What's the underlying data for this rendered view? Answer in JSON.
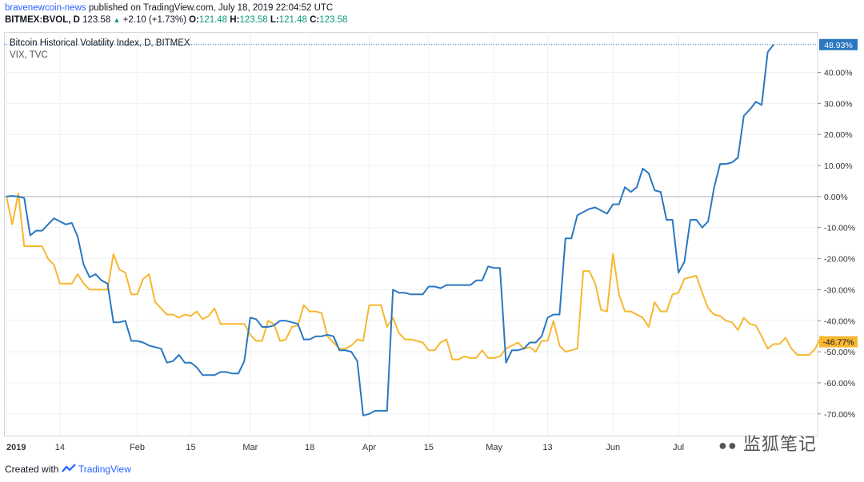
{
  "header": {
    "author": "bravenewcoin-news",
    "published": "published on TradingView.com, July 18, 2019 22:04:52 UTC",
    "symbol": "BITMEX:BVOL, D",
    "last": "123.58",
    "change": "+2.10 (+1.73%)",
    "o_label": "O:",
    "o_value": "121.48",
    "h_label": "H:",
    "h_value": "123.58",
    "l_label": "L:",
    "l_value": "121.48",
    "c_label": "C:",
    "c_value": "123.58"
  },
  "footer": {
    "created_with": "Created with",
    "brand": "TradingView"
  },
  "watermark": "监狐笔记",
  "colors": {
    "bvol": "#2a78c0",
    "vix": "#f7b731",
    "grid": "#eef0f3",
    "axis": "#d1d4dc",
    "text": "#131722"
  },
  "chart_data": {
    "type": "line",
    "legend": [
      {
        "name": "Bitcoin Historical Volatility Index, D, BITMEX",
        "color": "#2a78c0"
      },
      {
        "name": "VIX, TVC",
        "color": "#f7b731"
      }
    ],
    "x_ticks": [
      {
        "label": "2019",
        "i": 0
      },
      {
        "label": "14",
        "i": 9
      },
      {
        "label": "Feb",
        "i": 22
      },
      {
        "label": "15",
        "i": 31
      },
      {
        "label": "Mar",
        "i": 41
      },
      {
        "label": "18",
        "i": 51
      },
      {
        "label": "Apr",
        "i": 61
      },
      {
        "label": "15",
        "i": 71
      },
      {
        "label": "May",
        "i": 82
      },
      {
        "label": "13",
        "i": 91
      },
      {
        "label": "Jun",
        "i": 102
      },
      {
        "label": "Jul",
        "i": 113
      }
    ],
    "y_ticks": [
      "40.00%",
      "30.00%",
      "20.00%",
      "10.00%",
      "0.00%",
      "-10.00%",
      "-20.00%",
      "-30.00%",
      "-40.00%",
      "-50.00%",
      "-60.00%",
      "-70.00%"
    ],
    "ylim": [
      -77,
      53
    ],
    "y_unit": "%",
    "series": [
      {
        "name": "Bitcoin Historical Volatility Index, D, BITMEX",
        "last_label": "48.93%",
        "values": [
          0,
          0.2,
          0,
          -0.5,
          -12.5,
          -11,
          -11,
          -9,
          -7,
          -8,
          -9,
          -8.5,
          -13,
          -22,
          -26,
          -25,
          -27,
          -28,
          -40.5,
          -40.5,
          -40,
          -46.5,
          -46.5,
          -47,
          -48,
          -48.5,
          -49,
          -53.5,
          -53,
          -51,
          -53.5,
          -53.5,
          -55,
          -57.5,
          -57.5,
          -57.5,
          -56.5,
          -56.5,
          -57,
          -57,
          -53,
          -39,
          -39.5,
          -42,
          -42,
          -41.5,
          -40,
          -40,
          -40.5,
          -41,
          -46,
          -46,
          -45,
          -45,
          -44.5,
          -45,
          -49.5,
          -49.5,
          -50,
          -53,
          -70.5,
          -70,
          -69,
          -69,
          -69,
          -30,
          -31,
          -31,
          -31.5,
          -31.5,
          -31.5,
          -29,
          -29,
          -29.5,
          -28.5,
          -28.5,
          -28.5,
          -28.5,
          -28.5,
          -27,
          -27,
          -22.5,
          -23,
          -23,
          -53.5,
          -49.5,
          -49.5,
          -49,
          -47,
          -47,
          -45,
          -39,
          -38,
          -38,
          -13.5,
          -13.5,
          -6,
          -5,
          -4,
          -3.5,
          -4.5,
          -5.5,
          -2.5,
          -2.5,
          3,
          1.5,
          3,
          9,
          7.5,
          2,
          1.5,
          -7.5,
          -7.5,
          -24.5,
          -21,
          -7.5,
          -7.5,
          -10,
          -8,
          3,
          10.5,
          10.5,
          11,
          12.5,
          26,
          28,
          30.5,
          29.5,
          46.5,
          48.93
        ]
      },
      {
        "name": "VIX, TVC",
        "last_label": "-46.77%",
        "values": [
          0,
          -9,
          1,
          -16,
          -16,
          -16,
          -16,
          -20,
          -22,
          -28,
          -28,
          -28,
          -25,
          -28,
          -30,
          -30,
          -30,
          -30,
          -18.5,
          -23.5,
          -24.5,
          -31.5,
          -31.5,
          -26.5,
          -25,
          -34,
          -36,
          -38,
          -38,
          -39,
          -38,
          -38.5,
          -37,
          -39.5,
          -38.5,
          -36,
          -41,
          -41,
          -41,
          -41,
          -41,
          -44.5,
          -46.5,
          -46.5,
          -40,
          -41,
          -46.5,
          -46,
          -42,
          -41.5,
          -35,
          -37,
          -37,
          -37.5,
          -45,
          -47,
          -49,
          -49,
          -48,
          -46,
          -46.5,
          -35,
          -35,
          -35,
          -42,
          -39,
          -44,
          -46,
          -46,
          -46.5,
          -47,
          -49.5,
          -49.5,
          -47,
          -46,
          -52.5,
          -52.5,
          -51.5,
          -52,
          -52,
          -49.5,
          -52,
          -52,
          -51.5,
          -49,
          -48,
          -47,
          -49,
          -48.5,
          -50,
          -46.5,
          -46.5,
          -40,
          -48,
          -50,
          -49.5,
          -49,
          -24,
          -24,
          -28,
          -36.5,
          -37,
          -18.5,
          -31.5,
          -37,
          -37,
          -38,
          -39,
          -42,
          -34,
          -37,
          -37,
          -31.5,
          -31,
          -26.5,
          -26,
          -25.5,
          -31,
          -36,
          -38,
          -38.5,
          -40,
          -40.5,
          -43,
          -39,
          -41,
          -41.5,
          -45,
          -49,
          -47.5,
          -47.5,
          -45.5,
          -49,
          -51,
          -51,
          -51,
          -49,
          -45,
          -46.77
        ]
      }
    ]
  }
}
